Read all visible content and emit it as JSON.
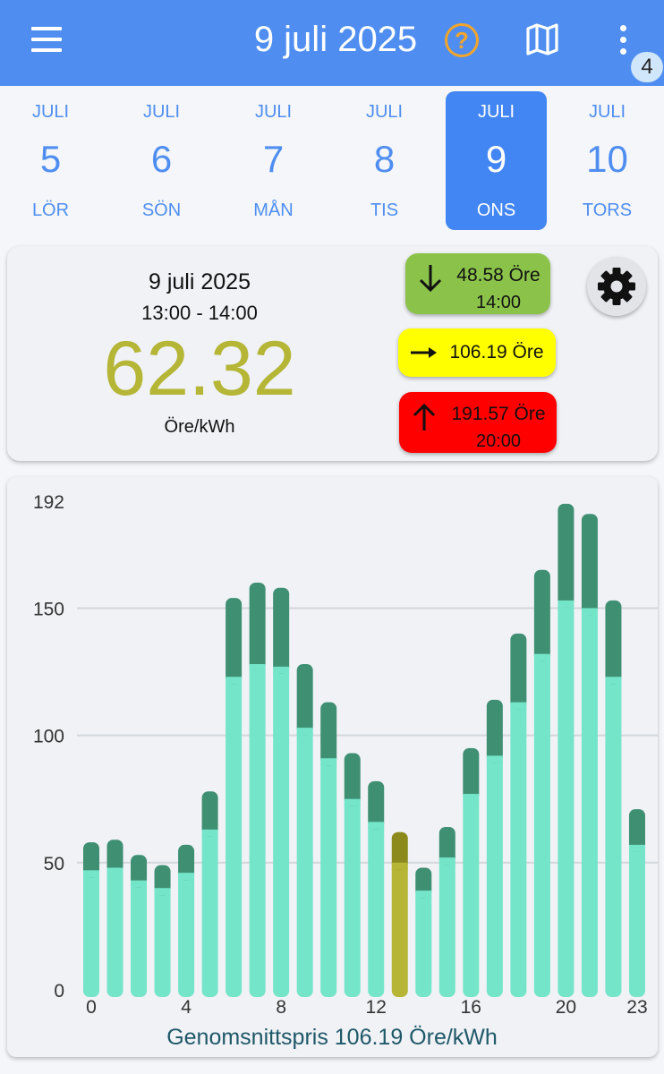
{
  "app_bar": {
    "title": "9 juli 2025",
    "help_icon": "question-circle-icon",
    "map_icon": "map-icon",
    "more_icon": "more-vert-icon",
    "notification_count": "4",
    "colors": {
      "bar": "#4f8ef0",
      "help": "#f3a52a"
    }
  },
  "days": [
    {
      "month": "JULI",
      "day": "5",
      "weekday": "LÖR",
      "selected": false
    },
    {
      "month": "JULI",
      "day": "6",
      "weekday": "SÖN",
      "selected": false
    },
    {
      "month": "JULI",
      "day": "7",
      "weekday": "MÅN",
      "selected": false
    },
    {
      "month": "JULI",
      "day": "8",
      "weekday": "TIS",
      "selected": false
    },
    {
      "month": "JULI",
      "day": "9",
      "weekday": "ONS",
      "selected": true
    },
    {
      "month": "JULI",
      "day": "10",
      "weekday": "TORS",
      "selected": false
    }
  ],
  "summary": {
    "date": "9 juli 2025",
    "time_range": "13:00 - 14:00",
    "current_price": "62.32",
    "unit": "Öre/kWh",
    "low": {
      "price": "48.58 Öre",
      "time": "14:00",
      "icon": "arrow-down-icon",
      "color": "#8bc34a"
    },
    "average": {
      "price": "106.19 Öre",
      "icon": "arrow-right-icon",
      "color": "#ffff00"
    },
    "high": {
      "price": "191.57 Öre",
      "time": "20:00",
      "icon": "arrow-up-icon",
      "color": "#ff0000"
    },
    "settings_icon": "gear-icon"
  },
  "chart_data": {
    "type": "bar",
    "stacked": true,
    "x": [
      0,
      1,
      2,
      3,
      4,
      5,
      6,
      7,
      8,
      9,
      10,
      11,
      12,
      13,
      14,
      15,
      16,
      17,
      18,
      19,
      20,
      21,
      22,
      23
    ],
    "x_tick_labels": [
      "0",
      "4",
      "8",
      "12",
      "16",
      "20",
      "23"
    ],
    "y_tick_labels": [
      "0",
      "50",
      "100",
      "150",
      "192"
    ],
    "ylim": [
      0,
      192
    ],
    "grid": true,
    "highlight_index": 13,
    "series": [
      {
        "values": [
          47,
          48,
          43,
          40,
          46,
          63,
          123,
          128,
          127,
          103,
          91,
          75,
          66,
          50,
          39,
          52,
          77,
          92,
          113,
          132,
          153,
          150,
          123,
          57
        ]
      },
      {
        "values": [
          11,
          11,
          10,
          9,
          11,
          15,
          31,
          32,
          31,
          25,
          22,
          18,
          16,
          12,
          9,
          12,
          18,
          22,
          27,
          33,
          38,
          37,
          30,
          14
        ]
      }
    ],
    "colors": {
      "base": "#74e5c9",
      "top": "#3f8f72",
      "highlight_base": "#b6b536",
      "highlight_top": "#8c8a1d",
      "grid": "#d3d6db",
      "footer_text": "#1f5868"
    },
    "footer": "Genomsnittspris 106.19 Öre/kWh"
  }
}
